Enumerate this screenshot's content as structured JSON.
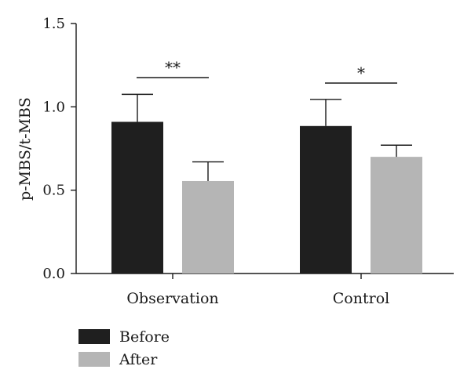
{
  "chart_data": {
    "type": "bar",
    "categories": [
      "Observation",
      "Control"
    ],
    "series": [
      {
        "name": "Before",
        "values": [
          0.91,
          0.885
        ],
        "errors": [
          0.165,
          0.16
        ],
        "color": "#1f1f1f"
      },
      {
        "name": "After",
        "values": [
          0.555,
          0.7
        ],
        "errors": [
          0.115,
          0.07
        ],
        "color": "#b5b5b5"
      }
    ],
    "ylabel": "p-MBS/t-MBS",
    "xlabel": "",
    "ylim": [
      0,
      1.5
    ],
    "yticks": [
      0.0,
      0.5,
      1.0,
      1.5
    ],
    "ytick_labels": [
      "0.0",
      "0.5",
      "1.0",
      "1.5"
    ],
    "grid": false,
    "legend_position": "bottom-left",
    "significance": [
      {
        "category": "Observation",
        "label": "**"
      },
      {
        "category": "Control",
        "label": "*"
      }
    ]
  }
}
